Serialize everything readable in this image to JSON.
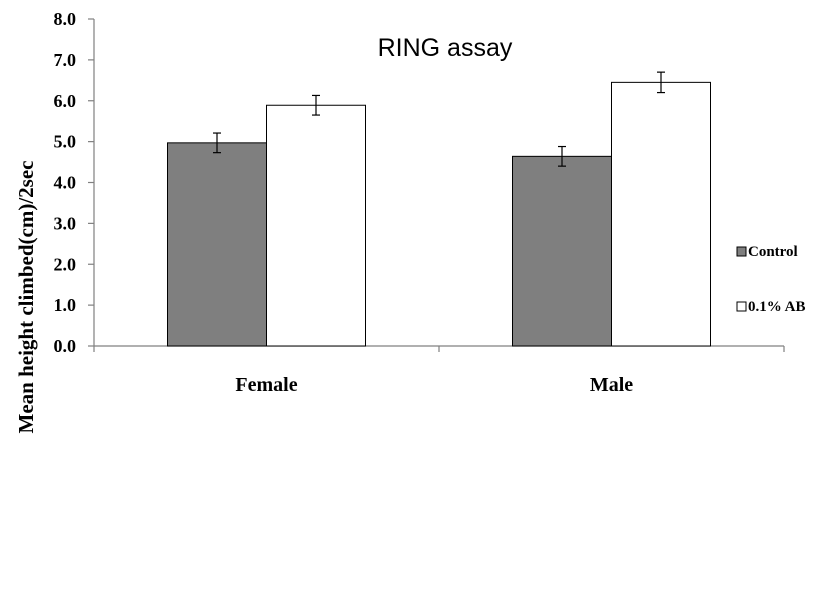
{
  "chart_data": {
    "type": "bar",
    "title": "RING assay",
    "xlabel": "",
    "ylabel": "Mean height climbed(cm)/2sec",
    "ylim": [
      0,
      8
    ],
    "yticks": [
      "0.0",
      "1.0",
      "2.0",
      "3.0",
      "4.0",
      "5.0",
      "6.0",
      "7.0",
      "8.0"
    ],
    "categories": [
      "Female",
      "Male"
    ],
    "series": [
      {
        "name": "Control",
        "color": "#7f7f7f",
        "values": [
          4.97,
          4.64
        ],
        "errors": [
          0.24,
          0.24
        ]
      },
      {
        "name": "0.1% AB",
        "color": "#ffffff",
        "values": [
          5.89,
          6.45
        ],
        "errors": [
          0.24,
          0.25
        ]
      }
    ],
    "legend_position": "right",
    "grid": false
  }
}
